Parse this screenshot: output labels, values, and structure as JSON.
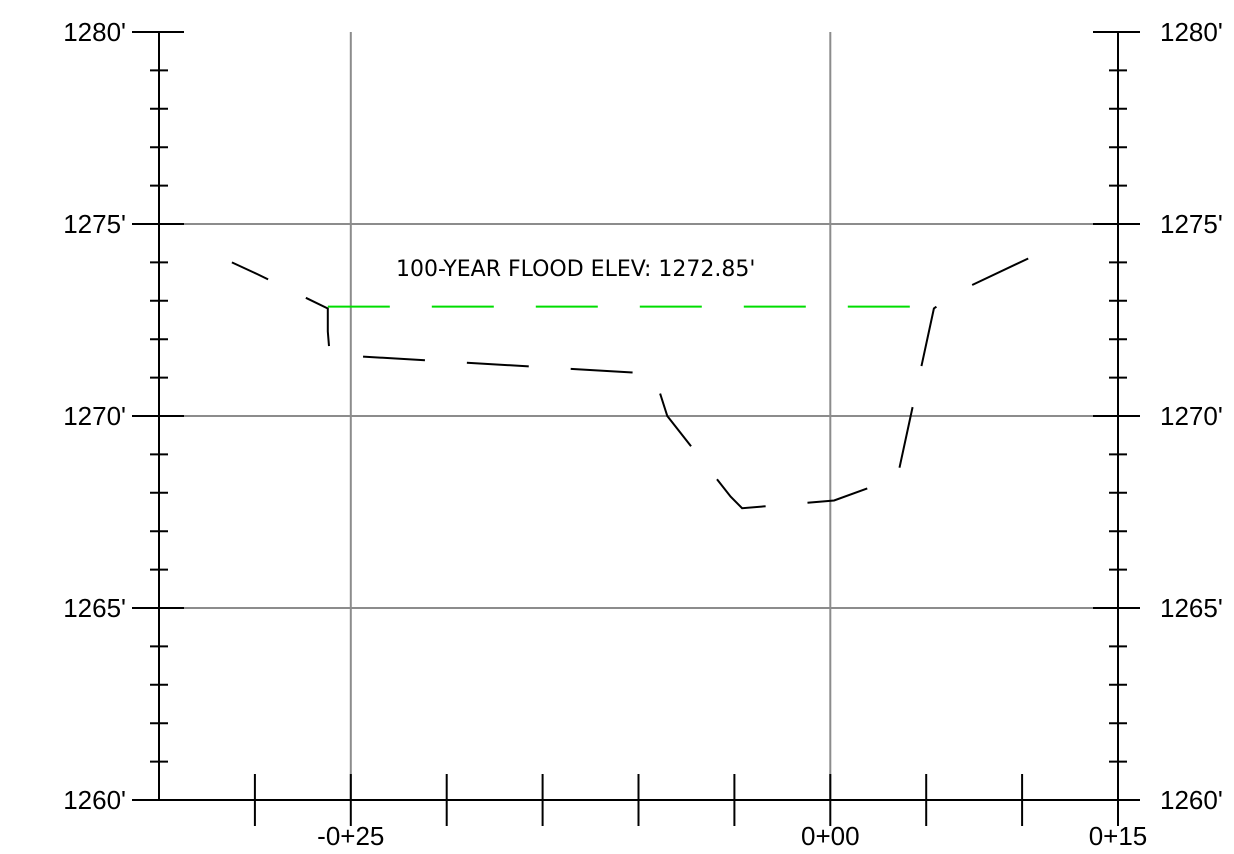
{
  "chart_data": {
    "type": "line",
    "title": "",
    "xlabel": "",
    "ylabel": "",
    "xlim": [
      -35,
      15
    ],
    "ylim": [
      1260,
      1280
    ],
    "grid": true,
    "y_tick_labels": [
      "1260'",
      "1265'",
      "1270'",
      "1275'",
      "1280'"
    ],
    "x_tick_labels": [
      "-0+25",
      "0+00",
      "0+15"
    ],
    "annotation": "100-YEAR FLOOD ELEV: 1272.85'",
    "flood_elevation": 1272.85,
    "series": [
      {
        "x": [
          -31.2,
          -29.9,
          -26.2,
          -26.2,
          -26.1,
          -9.2,
          -8.5,
          -5.2,
          -4.6,
          0.2,
          3.5,
          5.4,
          6.5,
          12.0
        ],
        "y": [
          1274.0,
          1273.7,
          1272.8,
          1272.2,
          1271.6,
          1271.1,
          1270.0,
          1267.9,
          1267.6,
          1267.8,
          1268.4,
          1272.8,
          1273.2,
          1274.5
        ]
      },
      {
        "x": [
          -26.2,
          5.5
        ],
        "y": [
          1272.85,
          1272.85
        ]
      }
    ],
    "colors": {
      "ground": "#000000",
      "flood": "#00dd00",
      "grid": "#8c8c8c",
      "axis": "#000000"
    }
  }
}
